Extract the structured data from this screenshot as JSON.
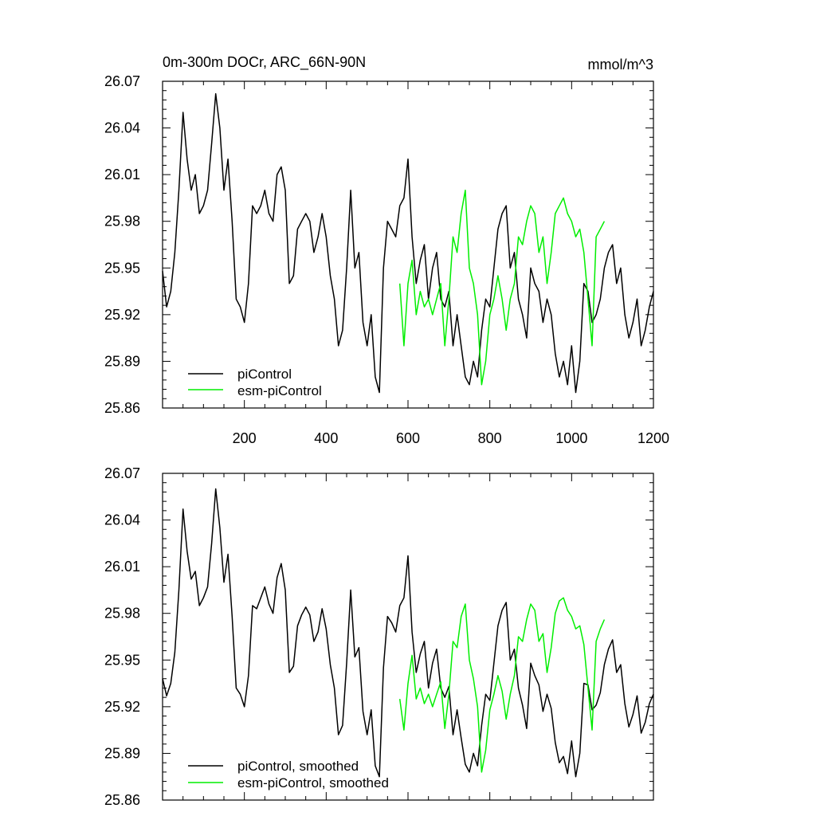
{
  "chart_data": [
    {
      "type": "line",
      "title": "0m-300m DOCr, ARC_66N-90N",
      "units": "mmol/m^3",
      "xlim": [
        0,
        1200
      ],
      "ylim": [
        25.86,
        26.07
      ],
      "xticks": [
        200,
        400,
        600,
        800,
        1000,
        1200
      ],
      "xtick_labels": [
        "200",
        "400",
        "600",
        "800",
        "1000",
        "1200"
      ],
      "yticks": [
        25.86,
        25.89,
        25.92,
        25.95,
        25.98,
        26.01,
        26.04,
        26.07
      ],
      "ytick_labels": [
        "25.86",
        "25.89",
        "25.92",
        "25.95",
        "25.98",
        "26.01",
        "26.04",
        "26.07"
      ],
      "legend_position": "bottom-left",
      "series": [
        {
          "name": "piControl",
          "color": "#000000",
          "x": [
            0,
            10,
            20,
            30,
            40,
            50,
            60,
            70,
            80,
            90,
            100,
            110,
            120,
            130,
            140,
            150,
            160,
            170,
            180,
            190,
            200,
            210,
            220,
            230,
            240,
            250,
            260,
            270,
            280,
            290,
            300,
            310,
            320,
            330,
            340,
            350,
            360,
            370,
            380,
            390,
            400,
            410,
            420,
            430,
            440,
            450,
            460,
            470,
            480,
            490,
            500,
            510,
            520,
            530,
            540,
            550,
            560,
            570,
            580,
            590,
            600,
            610,
            620,
            630,
            640,
            650,
            660,
            670,
            680,
            690,
            700,
            710,
            720,
            730,
            740,
            750,
            760,
            770,
            780,
            790,
            800,
            810,
            820,
            830,
            840,
            850,
            860,
            870,
            880,
            890,
            900,
            910,
            920,
            930,
            940,
            950,
            960,
            970,
            980,
            990,
            1000,
            1010,
            1020,
            1030,
            1040,
            1050,
            1060,
            1070,
            1080,
            1090,
            1100,
            1110,
            1120,
            1130,
            1140,
            1150,
            1160,
            1170,
            1180,
            1190,
            1200
          ],
          "y": [
            25.948,
            25.925,
            25.935,
            25.96,
            26.0,
            26.05,
            26.02,
            26.0,
            26.01,
            25.985,
            25.99,
            26.0,
            26.03,
            26.062,
            26.04,
            26.0,
            26.02,
            25.98,
            25.93,
            25.925,
            25.915,
            25.94,
            25.99,
            25.985,
            25.99,
            26.0,
            25.985,
            25.98,
            26.01,
            26.015,
            26.0,
            25.94,
            25.945,
            25.975,
            25.98,
            25.985,
            25.98,
            25.96,
            25.97,
            25.985,
            25.97,
            25.945,
            25.93,
            25.9,
            25.91,
            25.95,
            26.0,
            25.95,
            25.96,
            25.915,
            25.9,
            25.92,
            25.88,
            25.87,
            25.95,
            25.98,
            25.975,
            25.97,
            25.99,
            25.995,
            26.02,
            25.97,
            25.94,
            25.955,
            25.965,
            25.93,
            25.95,
            25.96,
            25.93,
            25.925,
            25.935,
            25.9,
            25.92,
            25.9,
            25.88,
            25.875,
            25.89,
            25.88,
            25.91,
            25.93,
            25.925,
            25.95,
            25.975,
            25.985,
            25.99,
            25.95,
            25.96,
            25.93,
            25.92,
            25.905,
            25.95,
            25.94,
            25.935,
            25.915,
            25.93,
            25.92,
            25.895,
            25.88,
            25.89,
            25.875,
            25.9,
            25.87,
            25.89,
            25.94,
            25.935,
            25.915,
            25.92,
            25.93,
            25.95,
            25.96,
            25.965,
            25.94,
            25.95,
            25.92,
            25.905,
            25.915,
            25.93,
            25.9,
            25.91,
            25.925,
            25.935
          ]
        },
        {
          "name": "esm-piControl",
          "color": "#00ee00",
          "x": [
            580,
            590,
            600,
            610,
            620,
            630,
            640,
            650,
            660,
            670,
            680,
            690,
            700,
            710,
            720,
            730,
            740,
            750,
            760,
            770,
            780,
            790,
            800,
            810,
            820,
            830,
            840,
            850,
            860,
            870,
            880,
            890,
            900,
            910,
            920,
            930,
            940,
            950,
            960,
            970,
            980,
            990,
            1000,
            1010,
            1020,
            1030,
            1040,
            1050,
            1060,
            1070,
            1080
          ],
          "y": [
            25.94,
            25.9,
            25.94,
            25.955,
            25.92,
            25.935,
            25.925,
            25.93,
            25.92,
            25.93,
            25.94,
            25.9,
            25.93,
            25.97,
            25.96,
            25.985,
            26.0,
            25.95,
            25.94,
            25.92,
            25.875,
            25.89,
            25.92,
            25.93,
            25.945,
            25.93,
            25.91,
            25.93,
            25.94,
            25.97,
            25.965,
            25.98,
            25.99,
            25.985,
            25.96,
            25.97,
            25.94,
            25.96,
            25.985,
            25.99,
            25.995,
            25.985,
            25.98,
            25.97,
            25.975,
            25.96,
            25.93,
            25.9,
            25.97,
            25.975,
            25.98
          ]
        }
      ]
    },
    {
      "type": "line",
      "title": "",
      "units": "",
      "xlim": [
        0,
        1200
      ],
      "ylim": [
        25.86,
        26.07
      ],
      "xticks": [
        200,
        400,
        600,
        800,
        1000,
        1200
      ],
      "yticks": [
        25.86,
        25.89,
        25.92,
        25.95,
        25.98,
        26.01,
        26.04,
        26.07
      ],
      "ytick_labels": [
        "25.86",
        "25.89",
        "25.92",
        "25.95",
        "25.98",
        "26.01",
        "26.04",
        "26.07"
      ],
      "legend_position": "bottom-left",
      "series": [
        {
          "name": "piControl, smoothed",
          "color": "#000000",
          "x": [
            0,
            10,
            20,
            30,
            40,
            50,
            60,
            70,
            80,
            90,
            100,
            110,
            120,
            130,
            140,
            150,
            160,
            170,
            180,
            190,
            200,
            210,
            220,
            230,
            240,
            250,
            260,
            270,
            280,
            290,
            300,
            310,
            320,
            330,
            340,
            350,
            360,
            370,
            380,
            390,
            400,
            410,
            420,
            430,
            440,
            450,
            460,
            470,
            480,
            490,
            500,
            510,
            520,
            530,
            540,
            550,
            560,
            570,
            580,
            590,
            600,
            610,
            620,
            630,
            640,
            650,
            660,
            670,
            680,
            690,
            700,
            710,
            720,
            730,
            740,
            750,
            760,
            770,
            780,
            790,
            800,
            810,
            820,
            830,
            840,
            850,
            860,
            870,
            880,
            890,
            900,
            910,
            920,
            930,
            940,
            950,
            960,
            970,
            980,
            990,
            1000,
            1010,
            1020,
            1030,
            1040,
            1050,
            1060,
            1070,
            1080,
            1090,
            1100,
            1110,
            1120,
            1130,
            1140,
            1150,
            1160,
            1170,
            1180,
            1190,
            1200
          ],
          "y": [
            25.938,
            25.927,
            25.935,
            25.955,
            25.995,
            26.047,
            26.02,
            26.002,
            26.007,
            25.985,
            25.99,
            25.997,
            26.025,
            26.06,
            26.035,
            26.0,
            26.018,
            25.978,
            25.932,
            25.928,
            25.92,
            25.94,
            25.985,
            25.983,
            25.99,
            25.997,
            25.986,
            25.98,
            26.003,
            26.012,
            25.995,
            25.942,
            25.946,
            25.972,
            25.979,
            25.984,
            25.979,
            25.962,
            25.968,
            25.983,
            25.97,
            25.947,
            25.932,
            25.902,
            25.908,
            25.948,
            25.995,
            25.952,
            25.958,
            25.917,
            25.902,
            25.918,
            25.882,
            25.875,
            25.945,
            25.978,
            25.974,
            25.968,
            25.985,
            25.99,
            26.017,
            25.968,
            25.942,
            25.954,
            25.962,
            25.932,
            25.948,
            25.957,
            25.932,
            25.926,
            25.933,
            25.902,
            25.918,
            25.9,
            25.883,
            25.878,
            25.89,
            25.882,
            25.908,
            25.928,
            25.924,
            25.948,
            25.972,
            25.982,
            25.987,
            25.95,
            25.957,
            25.932,
            25.921,
            25.906,
            25.948,
            25.94,
            25.934,
            25.917,
            25.928,
            25.919,
            25.897,
            25.884,
            25.888,
            25.877,
            25.898,
            25.875,
            25.89,
            25.935,
            25.934,
            25.918,
            25.921,
            25.929,
            25.947,
            25.957,
            25.963,
            25.942,
            25.947,
            25.922,
            25.907,
            25.915,
            25.927,
            25.903,
            25.91,
            25.922,
            25.928
          ]
        },
        {
          "name": "esm-piControl, smoothed",
          "color": "#00ee00",
          "x": [
            580,
            590,
            600,
            610,
            620,
            630,
            640,
            650,
            660,
            670,
            680,
            690,
            700,
            710,
            720,
            730,
            740,
            750,
            760,
            770,
            780,
            790,
            800,
            810,
            820,
            830,
            840,
            850,
            860,
            870,
            880,
            890,
            900,
            910,
            920,
            930,
            940,
            950,
            960,
            970,
            980,
            990,
            1000,
            1010,
            1020,
            1030,
            1040,
            1050,
            1060,
            1070,
            1080
          ],
          "y": [
            25.925,
            25.905,
            25.935,
            25.953,
            25.925,
            25.932,
            25.922,
            25.928,
            25.92,
            25.928,
            25.936,
            25.906,
            25.928,
            25.962,
            25.958,
            25.978,
            25.986,
            25.95,
            25.938,
            25.92,
            25.878,
            25.892,
            25.918,
            25.928,
            25.94,
            25.93,
            25.912,
            25.928,
            25.94,
            25.965,
            25.962,
            25.976,
            25.986,
            25.982,
            25.962,
            25.967,
            25.942,
            25.958,
            25.98,
            25.988,
            25.99,
            25.982,
            25.978,
            25.97,
            25.972,
            25.96,
            25.932,
            25.905,
            25.962,
            25.97,
            25.976
          ]
        }
      ]
    }
  ]
}
